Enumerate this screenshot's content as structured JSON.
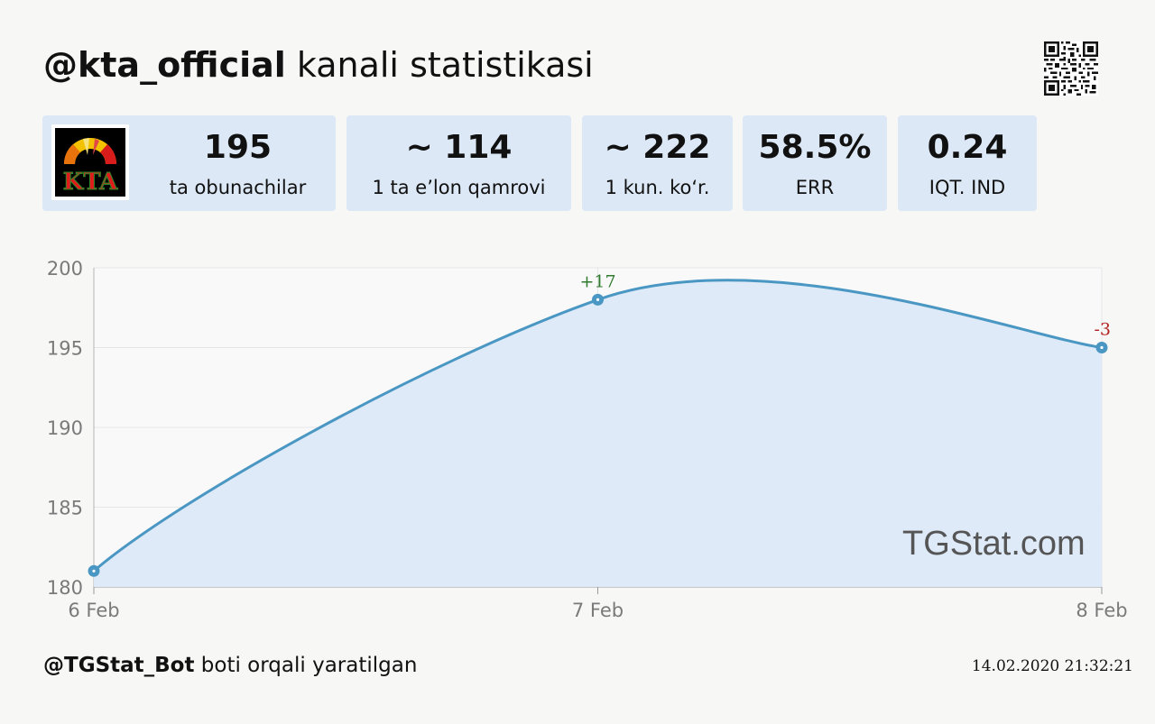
{
  "header": {
    "handle": "@kta_official",
    "suffix": " kanali statistikasi"
  },
  "cards": [
    {
      "value": "195",
      "label": "ta obunachilar"
    },
    {
      "value": "~ 114",
      "label": "1 ta e’lon qamrovi"
    },
    {
      "value": "~ 222",
      "label": "1 kun. ko‘r."
    },
    {
      "value": "58.5%",
      "label": "ERR"
    },
    {
      "value": "0.24",
      "label": "IQT. IND"
    }
  ],
  "logo": {
    "text": "KTA"
  },
  "watermark": "TGStat.com",
  "footer": {
    "bot": "@TGStat_Bot",
    "suffix": " boti orqali yaratilgan",
    "timestamp": "14.02.2020 21:32:21"
  },
  "colors": {
    "line": "#4a97c3",
    "fill": "#dce9f8",
    "positive": "#2f7a2f",
    "negative": "#b22222",
    "card_bg": "#dce8f5"
  },
  "chart_data": {
    "type": "area",
    "categories": [
      "6 Feb",
      "7 Feb",
      "8 Feb"
    ],
    "values": [
      181,
      198,
      195
    ],
    "annotations": [
      "",
      "+17",
      "-3"
    ],
    "ylim": [
      180,
      200
    ],
    "yticks": [
      "180",
      "185",
      "190",
      "195",
      "200"
    ],
    "grid": true,
    "title": "",
    "xlabel": "",
    "ylabel": ""
  }
}
